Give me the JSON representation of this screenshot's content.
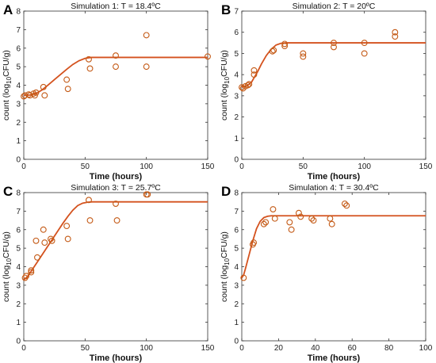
{
  "figure": {
    "colors": {
      "curve": "#d4521e",
      "marker": "#c45a16",
      "axis": "#333333",
      "background": "#ffffff"
    }
  },
  "chart_data": [
    {
      "type": "scatter",
      "panel_letter": "A",
      "title": "Simulation 1: T = 18.4ºC",
      "xlabel": "Time (hours)",
      "ylabel": "count (log10CFU/g)",
      "xlim": [
        0,
        150
      ],
      "ylim": [
        0,
        8
      ],
      "xticks": [
        0,
        50,
        100,
        150
      ],
      "yticks": [
        0,
        1,
        2,
        3,
        4,
        5,
        6,
        7,
        8
      ],
      "grid": false,
      "series": [
        {
          "kind": "points",
          "x": [
            0,
            1,
            4,
            5,
            8,
            9,
            10,
            16,
            17,
            35,
            36,
            53,
            54,
            75,
            75,
            100,
            100,
            150
          ],
          "y": [
            3.4,
            3.45,
            3.5,
            3.45,
            3.55,
            3.45,
            3.6,
            3.9,
            3.45,
            4.3,
            3.8,
            5.4,
            4.9,
            5.6,
            5.0,
            6.7,
            5.0,
            5.55
          ]
        },
        {
          "kind": "model",
          "x": [
            0,
            5,
            10,
            15,
            20,
            25,
            30,
            35,
            40,
            45,
            50,
            55,
            60,
            65,
            70,
            80,
            100,
            150
          ],
          "y": [
            3.45,
            3.47,
            3.55,
            3.75,
            4.02,
            4.3,
            4.58,
            4.86,
            5.12,
            5.32,
            5.45,
            5.5,
            5.5,
            5.5,
            5.5,
            5.5,
            5.5,
            5.5
          ]
        }
      ]
    },
    {
      "type": "scatter",
      "panel_letter": "B",
      "title": "Simulation 2: T = 20ºC",
      "xlabel": "Time (hours)",
      "ylabel": "count (log10CFU/g)",
      "xlim": [
        0,
        150
      ],
      "ylim": [
        0,
        7
      ],
      "xticks": [
        0,
        50,
        100,
        150
      ],
      "yticks": [
        0,
        1,
        2,
        3,
        4,
        5,
        6,
        7
      ],
      "grid": false,
      "series": [
        {
          "kind": "points",
          "x": [
            0,
            1,
            3,
            5,
            6,
            10,
            10,
            25,
            26,
            35,
            35,
            50,
            50,
            75,
            75,
            100,
            100,
            125,
            125
          ],
          "y": [
            3.4,
            3.35,
            3.45,
            3.5,
            3.55,
            4.2,
            4.0,
            5.1,
            5.15,
            5.45,
            5.35,
            5.0,
            4.85,
            5.5,
            5.3,
            5.5,
            5.0,
            6.0,
            5.8
          ]
        },
        {
          "kind": "model",
          "x": [
            0,
            3,
            5,
            8,
            10,
            13,
            16,
            20,
            24,
            28,
            32,
            36,
            40,
            60,
            80,
            100,
            125,
            150
          ],
          "y": [
            3.42,
            3.44,
            3.5,
            3.65,
            3.85,
            4.15,
            4.5,
            4.9,
            5.2,
            5.4,
            5.48,
            5.5,
            5.5,
            5.5,
            5.5,
            5.5,
            5.5,
            5.5
          ]
        }
      ]
    },
    {
      "type": "scatter",
      "panel_letter": "C",
      "title": "Simulation 3: T = 25.7ºC",
      "xlabel": "Time (hours)",
      "ylabel": "count (log10CFU/g)",
      "xlim": [
        0,
        150
      ],
      "ylim": [
        0,
        8
      ],
      "xticks": [
        0,
        50,
        100,
        150
      ],
      "yticks": [
        0,
        1,
        2,
        3,
        4,
        5,
        6,
        7,
        8
      ],
      "grid": false,
      "series": [
        {
          "kind": "points",
          "x": [
            1,
            2,
            6,
            6,
            10,
            11,
            16,
            17,
            22,
            23,
            35,
            36,
            53,
            54,
            75,
            76,
            100,
            101
          ],
          "y": [
            3.4,
            3.5,
            3.7,
            3.8,
            5.4,
            4.5,
            6.0,
            5.3,
            5.5,
            5.4,
            6.2,
            5.5,
            7.6,
            6.5,
            7.4,
            6.5,
            7.9,
            7.9
          ]
        },
        {
          "kind": "model",
          "x": [
            0,
            2,
            4,
            8,
            12,
            16,
            20,
            24,
            28,
            32,
            36,
            40,
            44,
            48,
            52,
            56,
            60,
            80,
            100,
            150
          ],
          "y": [
            3.3,
            3.4,
            3.55,
            3.95,
            4.35,
            4.75,
            5.15,
            5.55,
            5.95,
            6.35,
            6.72,
            7.05,
            7.3,
            7.43,
            7.48,
            7.5,
            7.5,
            7.5,
            7.5,
            7.5
          ]
        }
      ]
    },
    {
      "type": "scatter",
      "panel_letter": "D",
      "title": "Simulation 4: T = 30.4ºC",
      "xlabel": "Time (hours)",
      "ylabel": "count (log10CFU/g)",
      "xlim": [
        0,
        100
      ],
      "ylim": [
        0,
        8
      ],
      "xticks": [
        0,
        20,
        40,
        60,
        80,
        100
      ],
      "yticks": [
        0,
        1,
        2,
        3,
        4,
        5,
        6,
        7,
        8
      ],
      "grid": false,
      "series": [
        {
          "kind": "points",
          "x": [
            1,
            6,
            6.5,
            12,
            13,
            17,
            18,
            26,
            27,
            31,
            32,
            38,
            39,
            48,
            49,
            56,
            57
          ],
          "y": [
            3.4,
            5.2,
            5.3,
            6.3,
            6.4,
            7.1,
            6.6,
            6.4,
            6.0,
            6.9,
            6.7,
            6.6,
            6.5,
            6.6,
            6.3,
            7.4,
            7.3
          ]
        },
        {
          "kind": "model",
          "x": [
            0,
            1,
            2,
            4,
            6,
            8,
            10,
            12,
            14,
            16,
            20,
            30,
            50,
            100
          ],
          "y": [
            3.4,
            3.55,
            3.9,
            4.65,
            5.4,
            6.05,
            6.45,
            6.65,
            6.72,
            6.75,
            6.75,
            6.75,
            6.75,
            6.75
          ]
        }
      ]
    }
  ]
}
